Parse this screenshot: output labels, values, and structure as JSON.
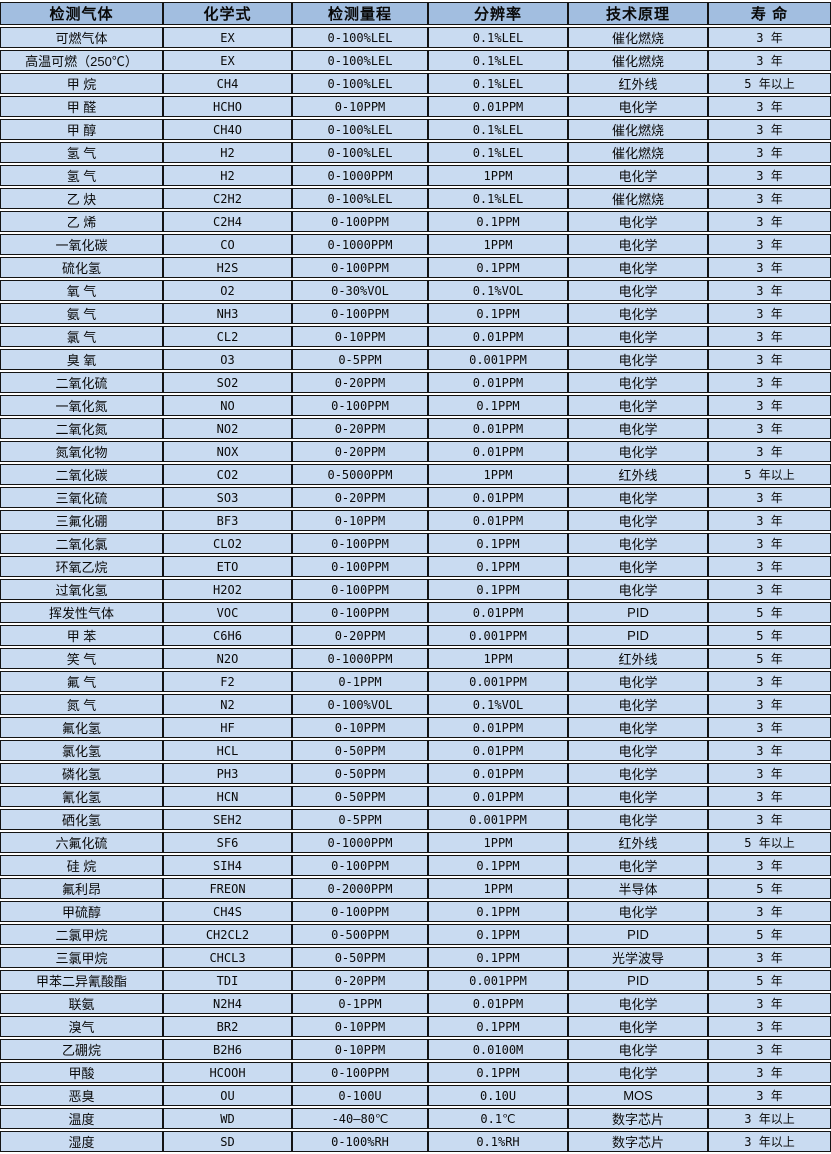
{
  "colors": {
    "header_bg": "#a2bee0",
    "row_bg": "#c9dbf1",
    "border_color": "#141414",
    "gap_color": "#ffffff",
    "text_color": "#0a0a0a"
  },
  "table": {
    "column_keys": [
      "gas",
      "formula",
      "range",
      "resolution",
      "principle",
      "lifespan"
    ],
    "columns": [
      {
        "label": "检测气体"
      },
      {
        "label": "化学式"
      },
      {
        "label": "检测量程"
      },
      {
        "label": "分辨率"
      },
      {
        "label": "技术原理"
      },
      {
        "label": "寿 命"
      }
    ],
    "rows": [
      {
        "gas": "可燃气体",
        "formula": "EX",
        "range": "0-100%LEL",
        "resolution": "0.1%LEL",
        "principle": "催化燃烧",
        "lifespan": "3 年"
      },
      {
        "gas": "高温可燃（250℃）",
        "formula": "EX",
        "range": "0-100%LEL",
        "resolution": "0.1%LEL",
        "principle": "催化燃烧",
        "lifespan": "3 年"
      },
      {
        "gas": "甲 烷",
        "formula": "CH4",
        "range": "0-100%LEL",
        "resolution": "0.1%LEL",
        "principle": "红外线",
        "lifespan": "5 年以上"
      },
      {
        "gas": "甲 醛",
        "formula": "HCHO",
        "range": "0-10PPM",
        "resolution": "0.01PPM",
        "principle": "电化学",
        "lifespan": "3 年"
      },
      {
        "gas": "甲 醇",
        "formula": "CH4O",
        "range": "0-100%LEL",
        "resolution": "0.1%LEL",
        "principle": "催化燃烧",
        "lifespan": "3 年"
      },
      {
        "gas": "氢 气",
        "formula": "H2",
        "range": "0-100%LEL",
        "resolution": "0.1%LEL",
        "principle": "催化燃烧",
        "lifespan": "3 年"
      },
      {
        "gas": "氢 气",
        "formula": "H2",
        "range": "0-1000PPM",
        "resolution": "1PPM",
        "principle": "电化学",
        "lifespan": "3 年"
      },
      {
        "gas": "乙 炔",
        "formula": "C2H2",
        "range": "0-100%LEL",
        "resolution": "0.1%LEL",
        "principle": "催化燃烧",
        "lifespan": "3 年"
      },
      {
        "gas": "乙 烯",
        "formula": "C2H4",
        "range": "0-100PPM",
        "resolution": "0.1PPM",
        "principle": "电化学",
        "lifespan": "3 年"
      },
      {
        "gas": "一氧化碳",
        "formula": "CO",
        "range": "0-1000PPM",
        "resolution": "1PPM",
        "principle": "电化学",
        "lifespan": "3 年"
      },
      {
        "gas": "硫化氢",
        "formula": "H2S",
        "range": "0-100PPM",
        "resolution": "0.1PPM",
        "principle": "电化学",
        "lifespan": "3 年"
      },
      {
        "gas": "氧 气",
        "formula": "O2",
        "range": "0-30%VOL",
        "resolution": "0.1%VOL",
        "principle": "电化学",
        "lifespan": "3 年"
      },
      {
        "gas": "氨 气",
        "formula": "NH3",
        "range": "0-100PPM",
        "resolution": "0.1PPM",
        "principle": "电化学",
        "lifespan": "3 年"
      },
      {
        "gas": "氯 气",
        "formula": "CL2",
        "range": "0-10PPM",
        "resolution": "0.01PPM",
        "principle": "电化学",
        "lifespan": "3 年"
      },
      {
        "gas": "臭 氧",
        "formula": "O3",
        "range": "0-5PPM",
        "resolution": "0.001PPM",
        "principle": "电化学",
        "lifespan": "3 年"
      },
      {
        "gas": "二氧化硫",
        "formula": "SO2",
        "range": "0-20PPM",
        "resolution": "0.01PPM",
        "principle": "电化学",
        "lifespan": "3 年"
      },
      {
        "gas": "一氧化氮",
        "formula": "NO",
        "range": "0-100PPM",
        "resolution": "0.1PPM",
        "principle": "电化学",
        "lifespan": "3 年"
      },
      {
        "gas": "二氧化氮",
        "formula": "NO2",
        "range": "0-20PPM",
        "resolution": "0.01PPM",
        "principle": "电化学",
        "lifespan": "3 年"
      },
      {
        "gas": "氮氧化物",
        "formula": "NOX",
        "range": "0-20PPM",
        "resolution": "0.01PPM",
        "principle": "电化学",
        "lifespan": "3 年"
      },
      {
        "gas": "二氧化碳",
        "formula": "CO2",
        "range": "0-5000PPM",
        "resolution": "1PPM",
        "principle": "红外线",
        "lifespan": "5 年以上"
      },
      {
        "gas": "三氧化硫",
        "formula": "SO3",
        "range": "0-20PPM",
        "resolution": "0.01PPM",
        "principle": "电化学",
        "lifespan": "3 年"
      },
      {
        "gas": "三氟化硼",
        "formula": "BF3",
        "range": "0-10PPM",
        "resolution": "0.01PPM",
        "principle": "电化学",
        "lifespan": "3 年"
      },
      {
        "gas": "二氧化氯",
        "formula": "CLO2",
        "range": "0-100PPM",
        "resolution": "0.1PPM",
        "principle": "电化学",
        "lifespan": "3 年"
      },
      {
        "gas": "环氧乙烷",
        "formula": "ETO",
        "range": "0-100PPM",
        "resolution": "0.1PPM",
        "principle": "电化学",
        "lifespan": "3 年"
      },
      {
        "gas": "过氧化氢",
        "formula": "H2O2",
        "range": "0-100PPM",
        "resolution": "0.1PPM",
        "principle": "电化学",
        "lifespan": "3 年"
      },
      {
        "gas": "挥发性气体",
        "formula": "VOC",
        "range": "0-100PPM",
        "resolution": "0.01PPM",
        "principle": "PID",
        "lifespan": "5 年"
      },
      {
        "gas": "甲 苯",
        "formula": "C6H6",
        "range": "0-20PPM",
        "resolution": "0.001PPM",
        "principle": "PID",
        "lifespan": "5 年"
      },
      {
        "gas": "笑 气",
        "formula": "N2O",
        "range": "0-1000PPM",
        "resolution": "1PPM",
        "principle": "红外线",
        "lifespan": "5 年"
      },
      {
        "gas": "氟 气",
        "formula": "F2",
        "range": "0-1PPM",
        "resolution": "0.001PPM",
        "principle": "电化学",
        "lifespan": "3 年"
      },
      {
        "gas": "氮 气",
        "formula": "N2",
        "range": "0-100%VOL",
        "resolution": "0.1%VOL",
        "principle": "电化学",
        "lifespan": "3 年"
      },
      {
        "gas": "氟化氢",
        "formula": "HF",
        "range": "0-10PPM",
        "resolution": "0.01PPM",
        "principle": "电化学",
        "lifespan": "3 年"
      },
      {
        "gas": "氯化氢",
        "formula": "HCL",
        "range": "0-50PPM",
        "resolution": "0.01PPM",
        "principle": "电化学",
        "lifespan": "3 年"
      },
      {
        "gas": "磷化氢",
        "formula": "PH3",
        "range": "0-50PPM",
        "resolution": "0.01PPM",
        "principle": "电化学",
        "lifespan": "3 年"
      },
      {
        "gas": "氰化氢",
        "formula": "HCN",
        "range": "0-50PPM",
        "resolution": "0.01PPM",
        "principle": "电化学",
        "lifespan": "3 年"
      },
      {
        "gas": "硒化氢",
        "formula": "SEH2",
        "range": "0-5PPM",
        "resolution": "0.001PPM",
        "principle": "电化学",
        "lifespan": "3 年"
      },
      {
        "gas": "六氟化硫",
        "formula": "SF6",
        "range": "0-1000PPM",
        "resolution": "1PPM",
        "principle": "红外线",
        "lifespan": "5 年以上"
      },
      {
        "gas": "硅 烷",
        "formula": "SIH4",
        "range": "0-100PPM",
        "resolution": "0.1PPM",
        "principle": "电化学",
        "lifespan": "3 年"
      },
      {
        "gas": "氟利昂",
        "formula": "FREON",
        "range": "0-2000PPM",
        "resolution": "1PPM",
        "principle": "半导体",
        "lifespan": "5 年"
      },
      {
        "gas": "甲硫醇",
        "formula": "CH4S",
        "range": "0-100PPM",
        "resolution": "0.1PPM",
        "principle": "电化学",
        "lifespan": "3 年"
      },
      {
        "gas": "二氯甲烷",
        "formula": "CH2CL2",
        "range": "0-500PPM",
        "resolution": "0.1PPM",
        "principle": "PID",
        "lifespan": "5 年"
      },
      {
        "gas": "三氯甲烷",
        "formula": "CHCL3",
        "range": "0-50PPM",
        "resolution": "0.1PPM",
        "principle": "光学波导",
        "lifespan": "3 年"
      },
      {
        "gas": "甲苯二异氰酸酯",
        "formula": "TDI",
        "range": "0-20PPM",
        "resolution": "0.001PPM",
        "principle": "PID",
        "lifespan": "5 年"
      },
      {
        "gas": "联氨",
        "formula": "N2H4",
        "range": "0-1PPM",
        "resolution": "0.01PPM",
        "principle": "电化学",
        "lifespan": "3 年"
      },
      {
        "gas": "溴气",
        "formula": "BR2",
        "range": "0-10PPM",
        "resolution": "0.1PPM",
        "principle": "电化学",
        "lifespan": "3 年"
      },
      {
        "gas": "乙硼烷",
        "formula": "B2H6",
        "range": "0-10PPM",
        "resolution": "0.0100M",
        "principle": "电化学",
        "lifespan": "3 年"
      },
      {
        "gas": "甲酸",
        "formula": "HCOOH",
        "range": "0-100PPM",
        "resolution": "0.1PPM",
        "principle": "电化学",
        "lifespan": "3 年"
      },
      {
        "gas": "恶臭",
        "formula": "OU",
        "range": "0-100U",
        "resolution": "0.10U",
        "principle": "MOS",
        "lifespan": "3 年"
      },
      {
        "gas": "温度",
        "formula": "WD",
        "range": "-40—80℃",
        "resolution": "0.1℃",
        "principle": "数字芯片",
        "lifespan": "3 年以上"
      },
      {
        "gas": "湿度",
        "formula": "SD",
        "range": "0-100%RH",
        "resolution": "0.1%RH",
        "principle": "数字芯片",
        "lifespan": "3 年以上"
      }
    ]
  }
}
